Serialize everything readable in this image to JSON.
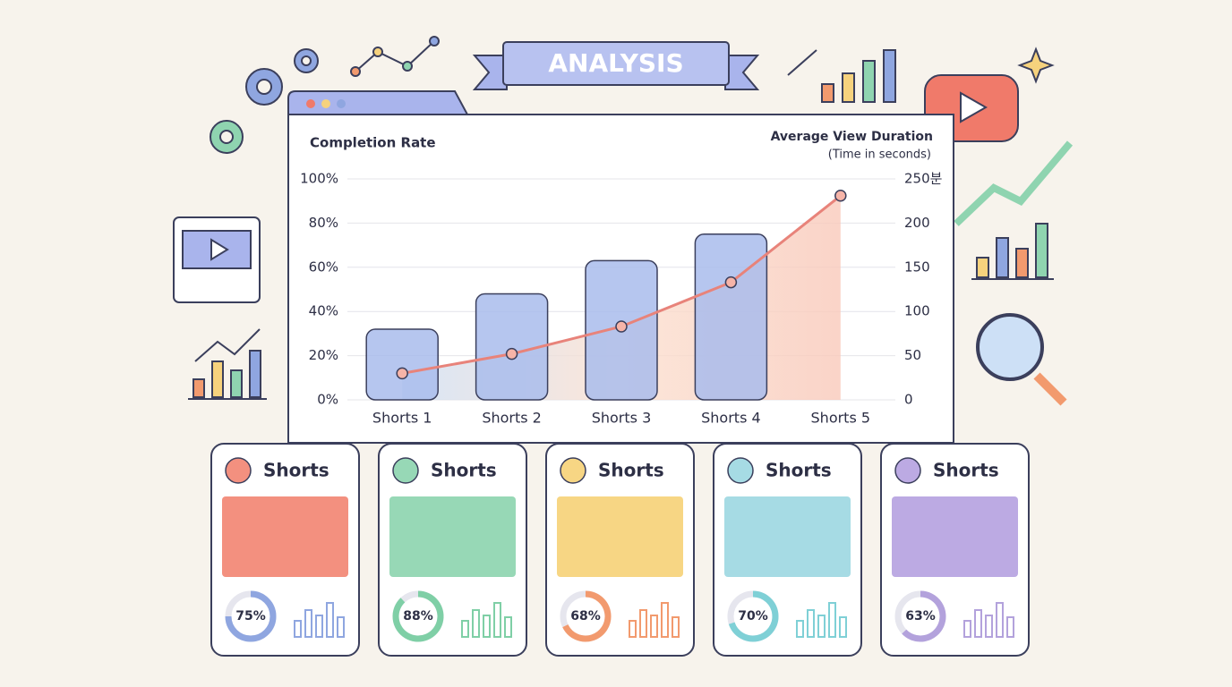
{
  "banner": "ANALYSIS",
  "chart_data": {
    "type": "bar-line",
    "categories": [
      "Shorts 1",
      "Shorts 2",
      "Shorts 3",
      "Shorts 4",
      "Shorts 5"
    ],
    "series": [
      {
        "name": "Completion Rate",
        "type": "bar",
        "color": "#a9bcec",
        "values": [
          32,
          48,
          63,
          75,
          null
        ]
      },
      {
        "name": "Average View Duration",
        "type": "line",
        "axis": "y2",
        "color": "#e8837a",
        "values": [
          30,
          52,
          83,
          133,
          231
        ]
      }
    ],
    "y2_note": "(Time in seconds)",
    "ylim": [
      0,
      100
    ],
    "yticks": [
      {
        "value": 0,
        "label": "0%"
      },
      {
        "value": 20,
        "label": "20%"
      },
      {
        "value": 40,
        "label": "40%"
      },
      {
        "value": 60,
        "label": "60%"
      },
      {
        "value": 80,
        "label": "80%"
      },
      {
        "value": 100,
        "label": "100%"
      }
    ],
    "y2lim": [
      0,
      250
    ],
    "y2ticks": [
      0,
      50,
      100,
      150,
      200,
      {
        "value": 250,
        "label": "250분"
      }
    ],
    "grid": true
  },
  "cards": [
    {
      "title": "Shorts",
      "percent": 75,
      "percent_label": "75%",
      "color": "#f3907f",
      "ring": "#8fa6e0"
    },
    {
      "title": "Shorts",
      "percent": 88,
      "percent_label": "88%",
      "color": "#97d8b6",
      "ring": "#7fcfa6"
    },
    {
      "title": "Shorts",
      "percent": 68,
      "percent_label": "68%",
      "color": "#f7d684",
      "ring": "#f29a6e"
    },
    {
      "title": "Shorts",
      "percent": 70,
      "percent_label": "70%",
      "color": "#a6dbe4",
      "ring": "#7fd0d6"
    },
    {
      "title": "Shorts",
      "percent": 63,
      "percent_label": "63%",
      "color": "#bcaae3",
      "ring": "#b3a2dc"
    }
  ]
}
